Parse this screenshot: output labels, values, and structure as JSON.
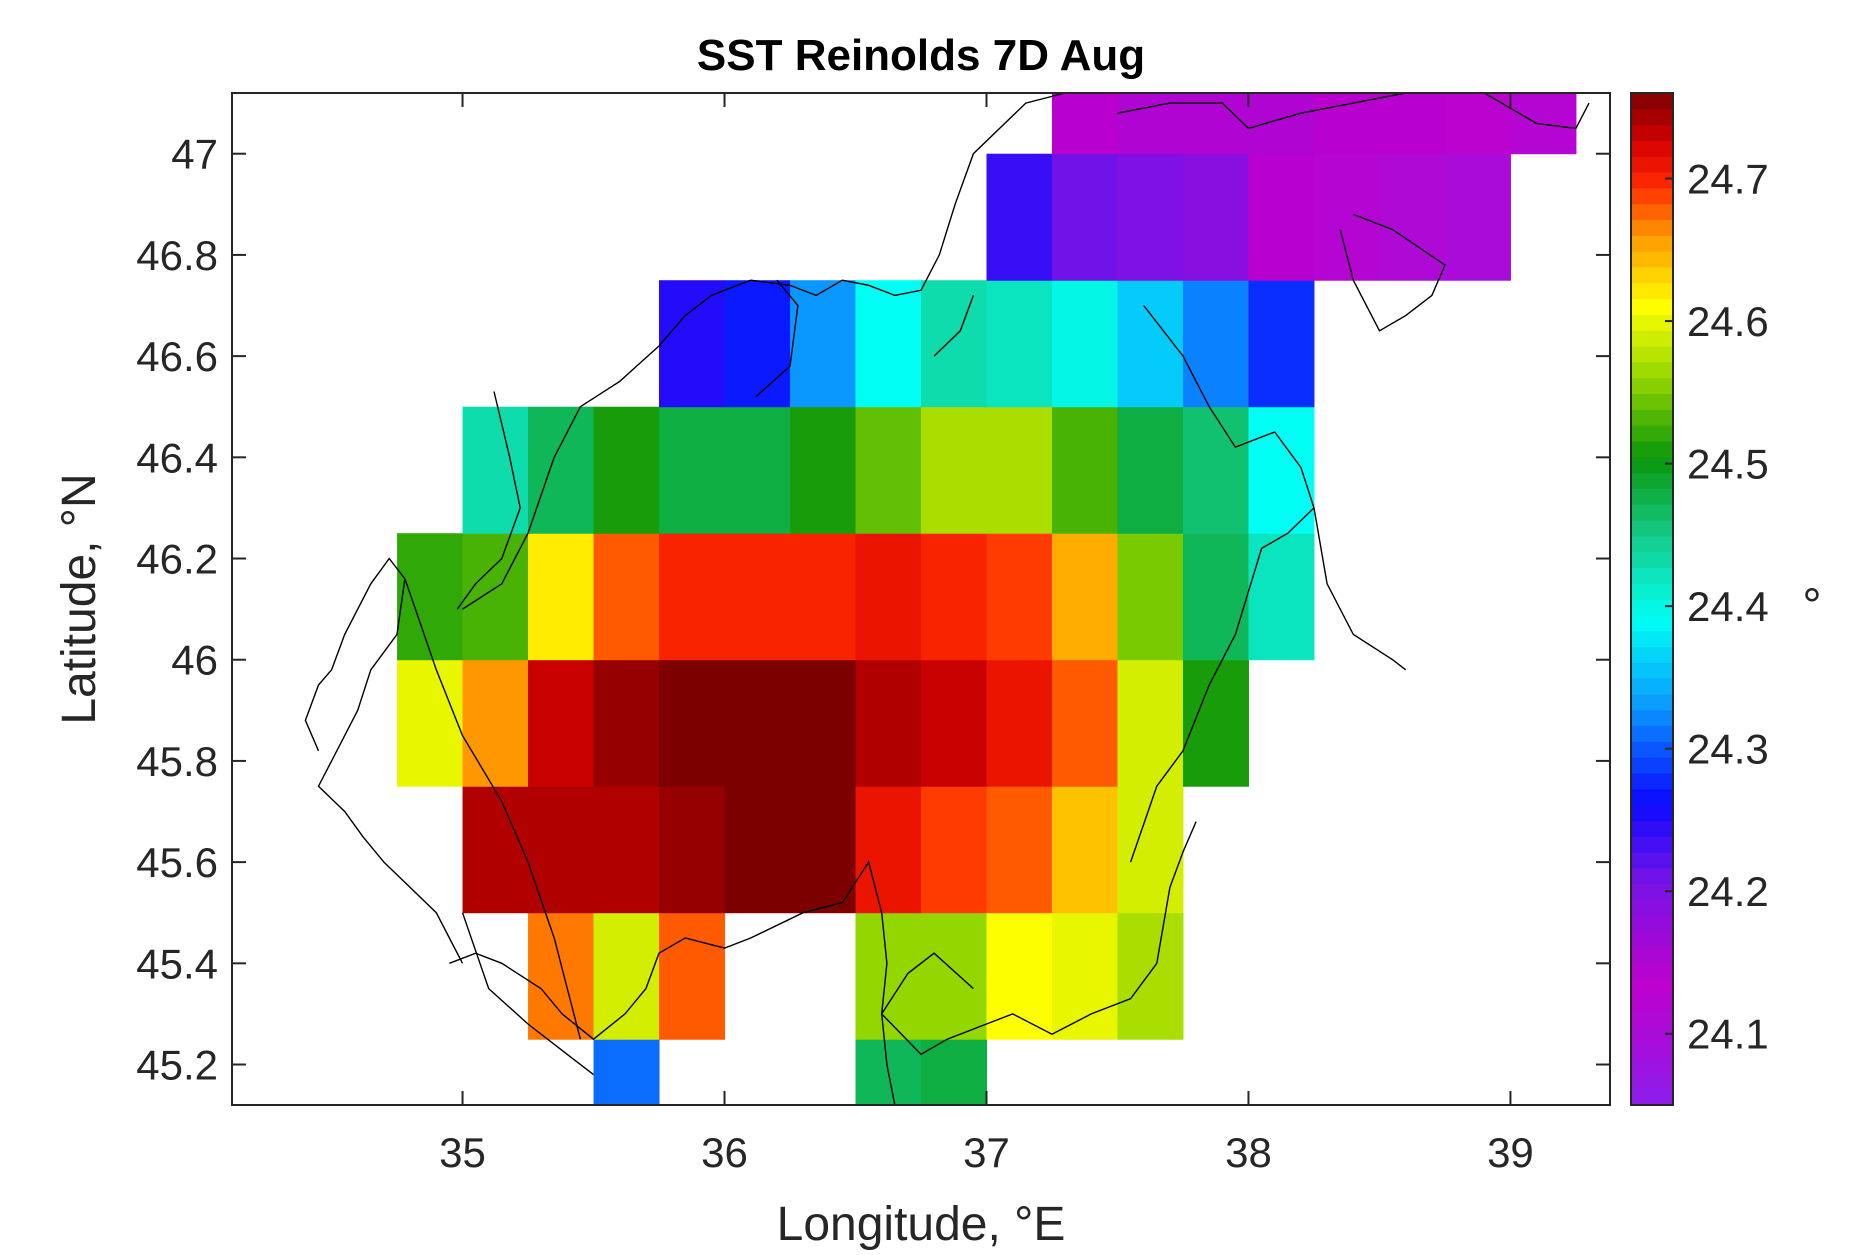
{
  "chart_data": {
    "type": "heatmap",
    "title": "SST Reinolds 7D Aug",
    "xlabel": "Longitude, °E",
    "ylabel": "Latitude, °N",
    "colorbar_label": "°",
    "xlim": [
      34.12,
      39.38
    ],
    "ylim": [
      45.12,
      47.12
    ],
    "xticks": [
      35,
      36,
      37,
      38,
      39
    ],
    "yticks": [
      45.2,
      45.4,
      45.6,
      45.8,
      46,
      46.2,
      46.4,
      46.6,
      46.8,
      47
    ],
    "xtick_labels": [
      "35",
      "36",
      "37",
      "38",
      "39"
    ],
    "ytick_labels": [
      "45.2",
      "45.4",
      "45.6",
      "45.8",
      "46",
      "46.2",
      "46.4",
      "46.6",
      "46.8",
      "47"
    ],
    "clim": [
      24.05,
      24.76
    ],
    "cticks": [
      24.1,
      24.2,
      24.3,
      24.4,
      24.5,
      24.6,
      24.7
    ],
    "ctick_labels": [
      "24.1",
      "24.2",
      "24.3",
      "24.4",
      "24.5",
      "24.6",
      "24.7"
    ],
    "colormap": "jet-like",
    "grid": false,
    "cell_lon_step": 0.25,
    "cell_lat_step": 0.25,
    "lon_centers": [
      34.875,
      35.125,
      35.375,
      35.625,
      35.875,
      36.125,
      36.375,
      36.625,
      36.875,
      37.125,
      37.375,
      37.625,
      37.875,
      38.125,
      38.375,
      38.625,
      38.875,
      39.125
    ],
    "lat_centers": [
      45.125,
      45.375,
      45.625,
      45.875,
      46.125,
      46.375,
      46.625,
      46.875,
      47.125
    ],
    "values": [
      [
        null,
        null,
        null,
        24.31,
        null,
        null,
        null,
        24.47,
        24.48,
        null,
        null,
        null,
        null,
        null,
        null,
        null,
        null,
        null
      ],
      [
        null,
        null,
        24.67,
        24.59,
        24.68,
        null,
        null,
        24.56,
        24.56,
        24.61,
        24.6,
        24.57,
        null,
        null,
        null,
        null,
        null,
        null
      ],
      [
        null,
        24.74,
        24.74,
        24.74,
        24.75,
        24.76,
        24.76,
        24.71,
        24.69,
        24.68,
        24.64,
        24.59,
        null,
        null,
        null,
        null,
        null,
        null
      ],
      [
        24.6,
        24.66,
        24.73,
        24.75,
        24.76,
        24.76,
        24.76,
        24.74,
        24.73,
        24.71,
        24.68,
        24.59,
        24.51,
        null,
        null,
        null,
        null,
        null
      ],
      [
        24.52,
        24.53,
        24.62,
        24.68,
        24.7,
        24.7,
        24.7,
        24.71,
        24.7,
        24.69,
        24.65,
        24.55,
        24.47,
        24.42,
        null,
        null,
        null,
        null
      ],
      [
        null,
        24.43,
        24.47,
        24.51,
        24.48,
        24.48,
        24.51,
        24.54,
        24.57,
        24.57,
        24.53,
        24.48,
        24.46,
        24.39,
        null,
        null,
        null,
        null
      ],
      [
        null,
        null,
        null,
        null,
        24.25,
        24.27,
        24.33,
        24.39,
        24.43,
        24.42,
        24.4,
        24.36,
        24.32,
        24.28,
        null,
        null,
        null,
        null
      ],
      [
        null,
        null,
        null,
        null,
        null,
        null,
        null,
        null,
        null,
        24.24,
        24.21,
        24.2,
        24.19,
        24.14,
        24.12,
        24.11,
        24.1,
        null
      ],
      [
        null,
        null,
        null,
        null,
        null,
        null,
        null,
        null,
        null,
        null,
        24.14,
        24.15,
        24.15,
        24.15,
        24.14,
        24.14,
        24.13,
        24.12
      ]
    ],
    "coastline": [
      [
        [
          36.65,
          45.12
        ],
        [
          36.62,
          45.2
        ],
        [
          36.6,
          45.3
        ],
        [
          36.62,
          45.4
        ],
        [
          36.6,
          45.5
        ],
        [
          36.55,
          45.6
        ],
        [
          36.45,
          45.52
        ],
        [
          36.3,
          45.5
        ],
        [
          36.1,
          45.45
        ],
        [
          36.0,
          45.43
        ],
        [
          35.85,
          45.45
        ],
        [
          35.75,
          45.42
        ],
        [
          35.7,
          45.35
        ],
        [
          35.62,
          45.3
        ],
        [
          35.5,
          45.25
        ],
        [
          35.38,
          45.3
        ],
        [
          35.3,
          45.35
        ],
        [
          35.15,
          45.4
        ],
        [
          35.05,
          45.42
        ],
        [
          34.95,
          45.4
        ]
      ],
      [
        [
          35.45,
          45.25
        ],
        [
          35.35,
          45.45
        ],
        [
          35.25,
          45.6
        ],
        [
          35.15,
          45.72
        ],
        [
          35.0,
          45.85
        ],
        [
          34.9,
          45.98
        ],
        [
          34.82,
          46.1
        ],
        [
          34.78,
          46.16
        ]
      ],
      [
        [
          34.78,
          46.16
        ],
        [
          34.75,
          46.05
        ],
        [
          34.65,
          45.98
        ],
        [
          34.6,
          45.9
        ],
        [
          34.55,
          45.85
        ],
        [
          34.5,
          45.8
        ],
        [
          34.45,
          45.75
        ],
        [
          34.55,
          45.7
        ],
        [
          34.62,
          45.65
        ],
        [
          34.7,
          45.6
        ],
        [
          34.8,
          45.55
        ],
        [
          34.9,
          45.5
        ],
        [
          34.95,
          45.45
        ],
        [
          35.0,
          45.4
        ]
      ],
      [
        [
          34.78,
          46.16
        ],
        [
          34.72,
          46.2
        ],
        [
          34.65,
          46.15
        ],
        [
          34.55,
          46.05
        ],
        [
          34.5,
          45.98
        ],
        [
          34.45,
          45.95
        ],
        [
          34.4,
          45.88
        ],
        [
          34.45,
          45.82
        ]
      ],
      [
        [
          35.0,
          45.5
        ],
        [
          35.1,
          45.35
        ],
        [
          35.25,
          45.28
        ],
        [
          35.4,
          45.22
        ],
        [
          35.5,
          45.18
        ]
      ],
      [
        [
          35.0,
          46.1
        ],
        [
          35.15,
          46.15
        ],
        [
          35.25,
          46.25
        ],
        [
          35.35,
          46.4
        ],
        [
          35.45,
          46.5
        ],
        [
          35.6,
          46.55
        ],
        [
          35.75,
          46.62
        ],
        [
          35.85,
          46.68
        ],
        [
          35.95,
          46.72
        ],
        [
          36.1,
          46.75
        ],
        [
          36.25,
          46.74
        ],
        [
          36.35,
          46.72
        ],
        [
          36.45,
          46.75
        ],
        [
          36.55,
          46.74
        ],
        [
          36.65,
          46.72
        ],
        [
          36.75,
          46.73
        ],
        [
          36.82,
          46.8
        ],
        [
          36.88,
          46.9
        ],
        [
          36.95,
          47.0
        ],
        [
          37.05,
          47.05
        ],
        [
          37.15,
          47.1
        ],
        [
          37.3,
          47.12
        ]
      ],
      [
        [
          35.12,
          46.53
        ],
        [
          35.18,
          46.4
        ],
        [
          35.22,
          46.3
        ],
        [
          35.15,
          46.2
        ],
        [
          35.05,
          46.15
        ],
        [
          34.98,
          46.1
        ]
      ],
      [
        [
          36.12,
          46.52
        ],
        [
          36.25,
          46.58
        ],
        [
          36.28,
          46.7
        ],
        [
          36.2,
          46.75
        ]
      ],
      [
        [
          36.8,
          46.6
        ],
        [
          36.9,
          46.65
        ],
        [
          36.95,
          46.72
        ]
      ],
      [
        [
          37.55,
          45.6
        ],
        [
          37.65,
          45.75
        ],
        [
          37.75,
          45.82
        ],
        [
          37.85,
          45.95
        ],
        [
          37.95,
          46.05
        ],
        [
          38.05,
          46.22
        ],
        [
          38.15,
          46.25
        ],
        [
          38.25,
          46.3
        ],
        [
          38.3,
          46.15
        ],
        [
          38.4,
          46.05
        ],
        [
          38.55,
          46.0
        ],
        [
          38.6,
          45.98
        ]
      ],
      [
        [
          37.6,
          46.7
        ],
        [
          37.75,
          46.6
        ],
        [
          37.85,
          46.5
        ],
        [
          37.95,
          46.42
        ],
        [
          38.1,
          46.45
        ],
        [
          38.2,
          46.38
        ],
        [
          38.25,
          46.3
        ]
      ],
      [
        [
          36.95,
          45.35
        ],
        [
          36.8,
          45.42
        ],
        [
          36.7,
          45.38
        ],
        [
          36.6,
          45.3
        ],
        [
          36.75,
          45.22
        ],
        [
          36.85,
          45.25
        ],
        [
          37.0,
          45.28
        ],
        [
          37.1,
          45.3
        ],
        [
          37.25,
          45.26
        ],
        [
          37.4,
          45.3
        ],
        [
          37.55,
          45.33
        ],
        [
          37.65,
          45.4
        ],
        [
          37.7,
          45.55
        ],
        [
          37.75,
          45.62
        ],
        [
          37.8,
          45.68
        ]
      ],
      [
        [
          37.5,
          47.08
        ],
        [
          37.7,
          47.1
        ],
        [
          37.9,
          47.1
        ],
        [
          38.0,
          47.05
        ],
        [
          38.2,
          47.08
        ],
        [
          38.4,
          47.1
        ],
        [
          38.6,
          47.12
        ],
        [
          38.9,
          47.12
        ],
        [
          39.1,
          47.06
        ],
        [
          39.25,
          47.05
        ],
        [
          39.3,
          47.1
        ]
      ],
      [
        [
          38.35,
          46.85
        ],
        [
          38.4,
          46.75
        ],
        [
          38.5,
          46.65
        ],
        [
          38.6,
          46.68
        ],
        [
          38.7,
          46.72
        ],
        [
          38.75,
          46.78
        ],
        [
          38.55,
          46.85
        ],
        [
          38.4,
          46.88
        ]
      ]
    ],
    "colors": {
      "axis": "#262626",
      "coastline": "#000000",
      "background": "#ffffff"
    }
  }
}
